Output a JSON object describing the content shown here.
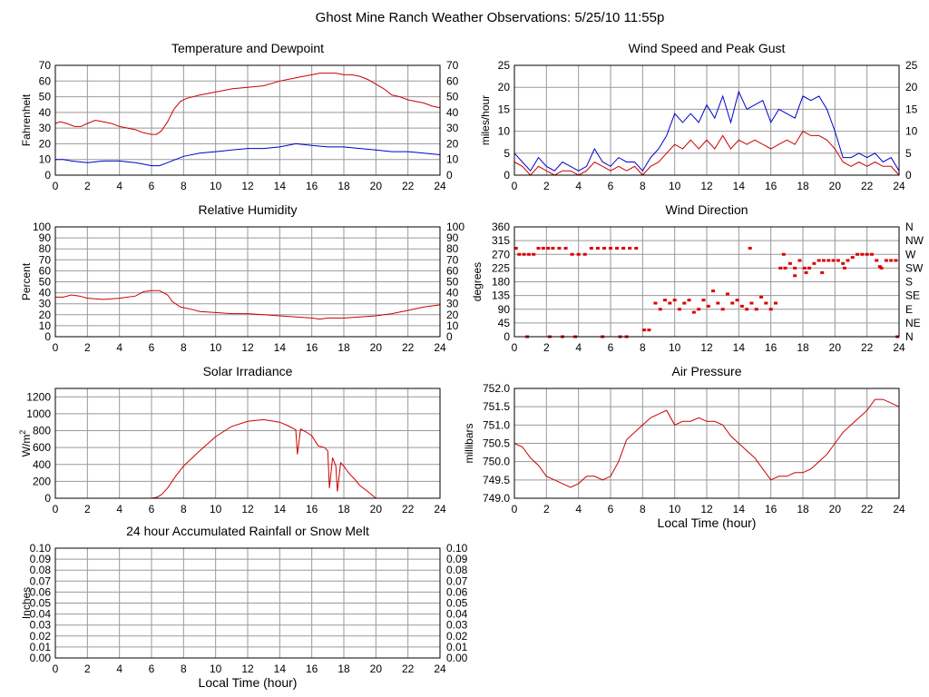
{
  "page": {
    "title": "Ghost Mine Ranch Weather Observations: 5/25/10 11:55p"
  },
  "chart_data": [
    {
      "id": "temp",
      "type": "line",
      "title": "Temperature and Dewpoint",
      "xlabel": "",
      "ylabel": "Fahrenheit",
      "xlim": [
        0,
        24
      ],
      "ylim": [
        0,
        70
      ],
      "xticks": [
        0,
        2,
        4,
        6,
        8,
        10,
        12,
        14,
        16,
        18,
        20,
        22,
        24
      ],
      "yticks": [
        0,
        10,
        20,
        30,
        40,
        50,
        60,
        70
      ],
      "right_ticks": true,
      "series": [
        {
          "name": "Temperature",
          "color": "#cc0000",
          "x": [
            0,
            0.3,
            0.7,
            1.2,
            1.6,
            2.0,
            2.5,
            3.0,
            3.5,
            4.0,
            4.5,
            5.0,
            5.5,
            6.0,
            6.3,
            6.6,
            7.0,
            7.4,
            7.8,
            8.2,
            9,
            10,
            11,
            12,
            13,
            14,
            15,
            16,
            16.5,
            17,
            17.5,
            18,
            18.5,
            19,
            19.5,
            20,
            20.5,
            21,
            21.5,
            22,
            22.5,
            23,
            23.5,
            24
          ],
          "y": [
            33,
            34,
            33,
            31,
            31,
            33,
            35,
            34,
            33,
            31,
            30,
            29,
            27,
            26,
            26,
            28,
            34,
            42,
            47,
            49,
            51,
            53,
            55,
            56,
            57,
            60,
            62,
            64,
            65,
            65,
            65,
            64,
            64,
            63,
            61,
            58,
            55,
            51,
            50,
            48,
            47,
            46,
            44,
            43
          ]
        },
        {
          "name": "Dewpoint",
          "color": "#0000cc",
          "x": [
            0,
            0.5,
            1,
            2,
            3,
            4,
            5,
            5.5,
            6,
            6.5,
            7,
            8,
            9,
            10,
            11,
            12,
            13,
            14,
            15,
            16,
            17,
            18,
            19,
            20,
            21,
            22,
            23,
            24
          ],
          "y": [
            10,
            10,
            9,
            8,
            9,
            9,
            8,
            7,
            6,
            6,
            8,
            12,
            14,
            15,
            16,
            17,
            17,
            18,
            20,
            19,
            18,
            18,
            17,
            16,
            15,
            15,
            14,
            13
          ]
        }
      ]
    },
    {
      "id": "wind",
      "type": "line",
      "title": "Wind Speed and Peak Gust",
      "xlabel": "",
      "ylabel": "miles/hour",
      "xlim": [
        0,
        24
      ],
      "ylim": [
        0,
        25
      ],
      "xticks": [
        0,
        2,
        4,
        6,
        8,
        10,
        12,
        14,
        16,
        18,
        20,
        22,
        24
      ],
      "yticks": [
        0,
        5,
        10,
        15,
        20,
        25
      ],
      "right_ticks": true,
      "series": [
        {
          "name": "Peak Gust",
          "color": "#0000cc",
          "x": [
            0,
            0.5,
            1,
            1.5,
            2,
            2.5,
            3,
            3.5,
            4,
            4.5,
            5,
            5.5,
            6,
            6.5,
            7,
            7.5,
            8,
            8.5,
            9,
            9.5,
            10,
            10.5,
            11,
            11.5,
            12,
            12.5,
            13,
            13.5,
            14,
            14.5,
            15,
            15.5,
            16,
            16.5,
            17,
            17.5,
            18,
            18.5,
            19,
            19.5,
            20,
            20.5,
            21,
            21.5,
            22,
            22.5,
            23,
            23.5,
            24
          ],
          "y": [
            5,
            3,
            1,
            4,
            2,
            1,
            3,
            2,
            1,
            2,
            6,
            3,
            2,
            4,
            3,
            3,
            1,
            4,
            6,
            9,
            14,
            12,
            14,
            12,
            16,
            13,
            18,
            12,
            19,
            15,
            16,
            17,
            12,
            15,
            14,
            13,
            18,
            17,
            18,
            15,
            10,
            4,
            4,
            5,
            4,
            5,
            3,
            4,
            1
          ]
        },
        {
          "name": "Wind Speed",
          "color": "#cc0000",
          "x": [
            0,
            0.5,
            1,
            1.5,
            2,
            2.5,
            3,
            3.5,
            4,
            4.5,
            5,
            5.5,
            6,
            6.5,
            7,
            7.5,
            8,
            8.5,
            9,
            9.5,
            10,
            10.5,
            11,
            11.5,
            12,
            12.5,
            13,
            13.5,
            14,
            14.5,
            15,
            15.5,
            16,
            16.5,
            17,
            17.5,
            18,
            18.5,
            19,
            19.5,
            20,
            20.5,
            21,
            21.5,
            22,
            22.5,
            23,
            23.5,
            24
          ],
          "y": [
            3,
            2,
            0,
            2,
            1,
            0,
            1,
            1,
            0,
            1,
            3,
            2,
            1,
            2,
            1,
            2,
            0,
            2,
            3,
            5,
            7,
            6,
            8,
            6,
            8,
            6,
            9,
            6,
            8,
            7,
            8,
            7,
            6,
            7,
            8,
            7,
            10,
            9,
            9,
            8,
            6,
            3,
            2,
            3,
            2,
            3,
            2,
            2,
            0
          ]
        }
      ]
    },
    {
      "id": "rh",
      "type": "line",
      "title": "Relative Humidity",
      "xlabel": "",
      "ylabel": "Percent",
      "xlim": [
        0,
        24
      ],
      "ylim": [
        0,
        100
      ],
      "xticks": [
        0,
        2,
        4,
        6,
        8,
        10,
        12,
        14,
        16,
        18,
        20,
        22,
        24
      ],
      "yticks": [
        0,
        10,
        20,
        30,
        40,
        50,
        60,
        70,
        80,
        90,
        100
      ],
      "right_ticks": true,
      "series": [
        {
          "name": "Relative Humidity",
          "color": "#cc0000",
          "x": [
            0,
            0.5,
            1,
            1.5,
            2,
            3,
            4,
            5,
            5.5,
            6,
            6.5,
            7,
            7.3,
            7.8,
            8.5,
            9,
            10,
            11,
            12,
            13,
            14,
            15,
            16,
            16.5,
            17,
            18,
            19,
            20,
            21,
            22,
            23,
            24
          ],
          "y": [
            36,
            36,
            38,
            37,
            35,
            34,
            35,
            37,
            41,
            42,
            42,
            38,
            32,
            27,
            25,
            23,
            22,
            21,
            21,
            20,
            19,
            18,
            17,
            16,
            17,
            17,
            18,
            19,
            21,
            24,
            27,
            29
          ]
        }
      ]
    },
    {
      "id": "wdir",
      "type": "scatter",
      "title": "Wind Direction",
      "xlabel": "",
      "ylabel": "degrees",
      "xlim": [
        0,
        24
      ],
      "ylim": [
        0,
        360
      ],
      "xticks": [
        0,
        2,
        4,
        6,
        8,
        10,
        12,
        14,
        16,
        18,
        20,
        22,
        24
      ],
      "yticks": [
        0,
        45,
        90,
        135,
        180,
        225,
        270,
        315,
        360
      ],
      "right_labels": [
        "N",
        "NE",
        "E",
        "SE",
        "S",
        "SW",
        "W",
        "NW",
        "N"
      ],
      "series": [
        {
          "name": "Wind Direction",
          "color": "#dd0000",
          "x": [
            0.1,
            0.3,
            0.6,
            0.9,
            1.2,
            1.5,
            1.8,
            2.1,
            2.4,
            2.8,
            3.2,
            3.6,
            4.0,
            4.4,
            4.8,
            5.2,
            5.6,
            6.0,
            6.4,
            6.8,
            7.2,
            7.6,
            0.8,
            2.2,
            3.0,
            3.8,
            5.5,
            6.6,
            7.0,
            8.1,
            8.4,
            8.8,
            9.1,
            9.4,
            9.7,
            10.0,
            10.3,
            10.6,
            10.9,
            11.2,
            11.5,
            11.8,
            12.1,
            12.4,
            12.7,
            13.0,
            13.3,
            13.6,
            13.9,
            14.2,
            14.5,
            14.8,
            15.1,
            15.4,
            15.7,
            16.0,
            16.3,
            16.6,
            16.9,
            17.2,
            17.5,
            17.8,
            18.1,
            18.4,
            18.7,
            19.0,
            19.3,
            19.6,
            19.9,
            20.2,
            20.5,
            20.8,
            21.1,
            21.4,
            21.7,
            22.0,
            22.3,
            22.6,
            22.9,
            23.2,
            23.5,
            23.8,
            14.7,
            16.8,
            17.5,
            18.2,
            19.2,
            20.6,
            22.8,
            23.9
          ],
          "y": [
            290,
            270,
            270,
            270,
            270,
            290,
            290,
            290,
            290,
            290,
            290,
            270,
            270,
            270,
            290,
            290,
            290,
            290,
            290,
            290,
            290,
            290,
            0,
            0,
            0,
            0,
            0,
            0,
            0,
            22,
            22,
            110,
            90,
            120,
            110,
            120,
            90,
            110,
            120,
            80,
            90,
            120,
            100,
            150,
            110,
            90,
            140,
            110,
            120,
            100,
            90,
            110,
            90,
            130,
            110,
            90,
            110,
            225,
            225,
            240,
            225,
            250,
            225,
            225,
            240,
            250,
            250,
            250,
            250,
            250,
            240,
            250,
            260,
            270,
            270,
            270,
            270,
            250,
            225,
            250,
            250,
            250,
            290,
            270,
            200,
            210,
            210,
            225,
            230,
            0
          ]
        }
      ]
    },
    {
      "id": "solar",
      "type": "line",
      "title": "Solar Irradiance",
      "xlabel": "",
      "ylabel": "W/m2",
      "xlim": [
        0,
        24
      ],
      "ylim": [
        0,
        1300
      ],
      "xticks": [
        0,
        2,
        4,
        6,
        8,
        10,
        12,
        14,
        16,
        18,
        20,
        22,
        24
      ],
      "yticks": [
        0,
        200,
        400,
        600,
        800,
        1000,
        1200
      ],
      "right_ticks": false,
      "series": [
        {
          "name": "Solar Irradiance",
          "color": "#cc0000",
          "x": [
            0,
            6,
            6.3,
            6.6,
            7,
            7.5,
            8,
            9,
            10,
            11,
            12,
            13,
            14,
            14.5,
            15,
            15.1,
            15.3,
            15.6,
            16,
            16.4,
            16.8,
            17,
            17.1,
            17.3,
            17.5,
            17.6,
            17.8,
            18,
            18.3,
            18.7,
            19,
            19.5,
            20,
            24
          ],
          "y": [
            0,
            0,
            10,
            40,
            120,
            260,
            380,
            560,
            730,
            850,
            910,
            930,
            900,
            860,
            810,
            520,
            820,
            790,
            740,
            620,
            600,
            560,
            120,
            480,
            380,
            80,
            420,
            380,
            300,
            220,
            150,
            80,
            0,
            0
          ]
        }
      ]
    },
    {
      "id": "press",
      "type": "line",
      "title": "Air Pressure",
      "xlabel": "Local Time (hour)",
      "ylabel": "millibars",
      "xlim": [
        0,
        24
      ],
      "ylim": [
        749.0,
        752.0
      ],
      "xticks": [
        0,
        2,
        4,
        6,
        8,
        10,
        12,
        14,
        16,
        18,
        20,
        22,
        24
      ],
      "yticks": [
        749.0,
        749.5,
        750.0,
        750.5,
        751.0,
        751.5,
        752.0
      ],
      "ytick_labels": [
        "749.0",
        "749.5",
        "750.0",
        "750.5",
        "751.0",
        "751.5",
        "752.0"
      ],
      "right_ticks": false,
      "series": [
        {
          "name": "Air Pressure",
          "color": "#cc0000",
          "x": [
            0,
            0.5,
            1,
            1.5,
            2,
            2.5,
            3,
            3.5,
            4,
            4.5,
            5,
            5.5,
            6,
            6.5,
            7,
            7.5,
            8,
            8.5,
            9,
            9.5,
            10,
            10.5,
            11,
            11.5,
            12,
            12.5,
            13,
            13.5,
            14,
            14.5,
            15,
            15.5,
            16,
            16.5,
            17,
            17.5,
            18,
            18.5,
            19,
            19.5,
            20,
            20.5,
            21,
            21.5,
            22,
            22.5,
            23,
            23.5,
            24
          ],
          "y": [
            750.5,
            750.4,
            750.1,
            749.9,
            749.6,
            749.5,
            749.4,
            749.3,
            749.4,
            749.6,
            749.6,
            749.5,
            749.6,
            750.0,
            750.6,
            750.8,
            751.0,
            751.2,
            751.3,
            751.4,
            751.0,
            751.1,
            751.1,
            751.2,
            751.1,
            751.1,
            751.0,
            750.7,
            750.5,
            750.3,
            750.1,
            749.8,
            749.5,
            749.6,
            749.6,
            749.7,
            749.7,
            749.8,
            750.0,
            750.2,
            750.5,
            750.8,
            751.0,
            751.2,
            751.4,
            751.7,
            751.7,
            751.6,
            751.5
          ]
        }
      ]
    },
    {
      "id": "rain",
      "type": "line",
      "title": "24 hour Accumulated Rainfall or Snow Melt",
      "xlabel": "Local Time (hour)",
      "ylabel": "Inches",
      "xlim": [
        0,
        24
      ],
      "ylim": [
        0,
        0.1
      ],
      "xticks": [
        0,
        2,
        4,
        6,
        8,
        10,
        12,
        14,
        16,
        18,
        20,
        22,
        24
      ],
      "yticks": [
        0,
        0.01,
        0.02,
        0.03,
        0.04,
        0.05,
        0.06,
        0.07,
        0.08,
        0.09,
        0.1
      ],
      "ytick_labels": [
        "0.00",
        "0.01",
        "0.02",
        "0.03",
        "0.04",
        "0.05",
        "0.06",
        "0.07",
        "0.08",
        "0.09",
        "0.10"
      ],
      "right_ticks": true,
      "series": [
        {
          "name": "Rainfall",
          "color": "#cc0000",
          "x": [
            0,
            24
          ],
          "y": [
            0,
            0
          ]
        }
      ]
    }
  ]
}
